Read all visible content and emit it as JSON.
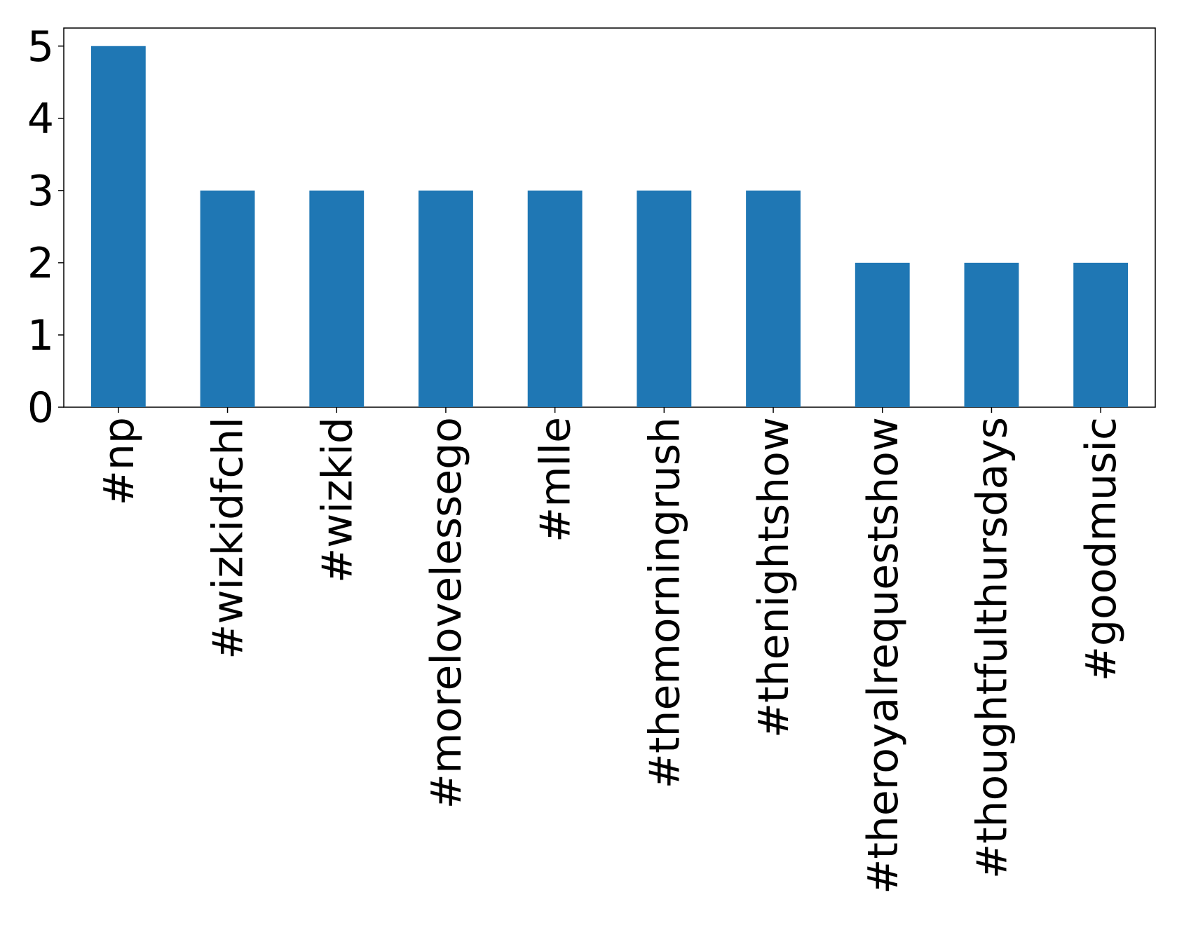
{
  "chart_data": {
    "type": "bar",
    "categories": [
      "#np",
      "#wizkidfchl",
      "#wizkid",
      "#morelovelessego",
      "#mlle",
      "#themorningrush",
      "#thenightshow",
      "#theroyalrequestshow",
      "#thoughtfulthursdays",
      "#goodmusic"
    ],
    "values": [
      5,
      3,
      3,
      3,
      3,
      3,
      3,
      2,
      2,
      2
    ],
    "color": "#1f77b4",
    "ylim": [
      0,
      5.25
    ],
    "yticks": [
      0,
      1,
      2,
      3,
      4,
      5
    ],
    "grid": false
  }
}
